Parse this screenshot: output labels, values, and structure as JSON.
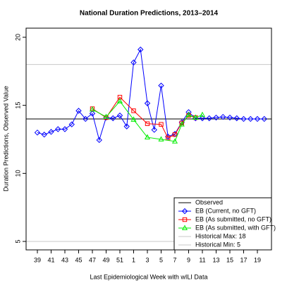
{
  "chart_data": {
    "type": "line",
    "title": "National Duration Predictions, 2013–2014",
    "x_label": "Last Epidemiological Week with wILI Data",
    "y_label": "Duration Predictions, Observed Value",
    "categories": [
      "39",
      null,
      "41",
      null,
      "43",
      null,
      "45",
      null,
      "47",
      null,
      "49",
      null,
      "51",
      null,
      "1",
      null,
      "3",
      null,
      "5",
      null,
      "7",
      null,
      "9",
      null,
      "11",
      null,
      "13",
      null,
      "15",
      null,
      "17",
      null,
      "19",
      null
    ],
    "ylim": [
      4.38,
      20.67
    ],
    "yticks": [
      5,
      10,
      15,
      20
    ],
    "series": [
      {
        "name": "EB (Current, no GFT)",
        "color": "#0000ff",
        "marker": "diamond",
        "values": [
          13.0,
          12.85,
          13.05,
          13.25,
          13.25,
          13.6,
          14.6,
          14.0,
          14.4,
          12.45,
          14.1,
          14.05,
          14.25,
          13.45,
          18.15,
          19.1,
          15.15,
          13.2,
          16.45,
          12.7,
          12.9,
          13.75,
          14.5,
          14.05,
          14.05,
          14.05,
          14.1,
          14.15,
          14.1,
          14.05,
          14.0,
          14.0,
          14.0,
          14.0
        ]
      },
      {
        "name": "EB (As submitted, no GFT)",
        "color": "#ff0000",
        "marker": "square",
        "values": [
          null,
          null,
          null,
          null,
          null,
          null,
          null,
          null,
          14.75,
          null,
          14.1,
          null,
          15.6,
          null,
          14.6,
          null,
          13.65,
          null,
          13.6,
          12.6,
          12.85,
          13.7,
          14.25,
          14.1,
          null,
          null,
          null,
          null,
          null,
          null,
          null,
          null,
          null,
          null
        ]
      },
      {
        "name": "EB (As submitted, with GFT)",
        "color": "#00ee00",
        "marker": "triangle",
        "values": [
          null,
          null,
          null,
          null,
          null,
          null,
          null,
          null,
          14.7,
          null,
          14.15,
          null,
          15.3,
          null,
          13.95,
          null,
          12.65,
          null,
          12.5,
          null,
          12.35,
          13.6,
          14.3,
          14.1,
          14.3,
          null,
          null,
          null,
          null,
          null,
          null,
          null,
          null,
          null
        ]
      }
    ],
    "reference_lines": [
      {
        "name": "Observed",
        "value": 14,
        "color": "#000000"
      },
      {
        "name": "Historical Max:  18",
        "value": 18,
        "color": "#c8c8c8"
      },
      {
        "name": "Historical Min:  5",
        "value": 5,
        "color": "#c8c8c8"
      }
    ],
    "legend_position": "bottom-right"
  }
}
